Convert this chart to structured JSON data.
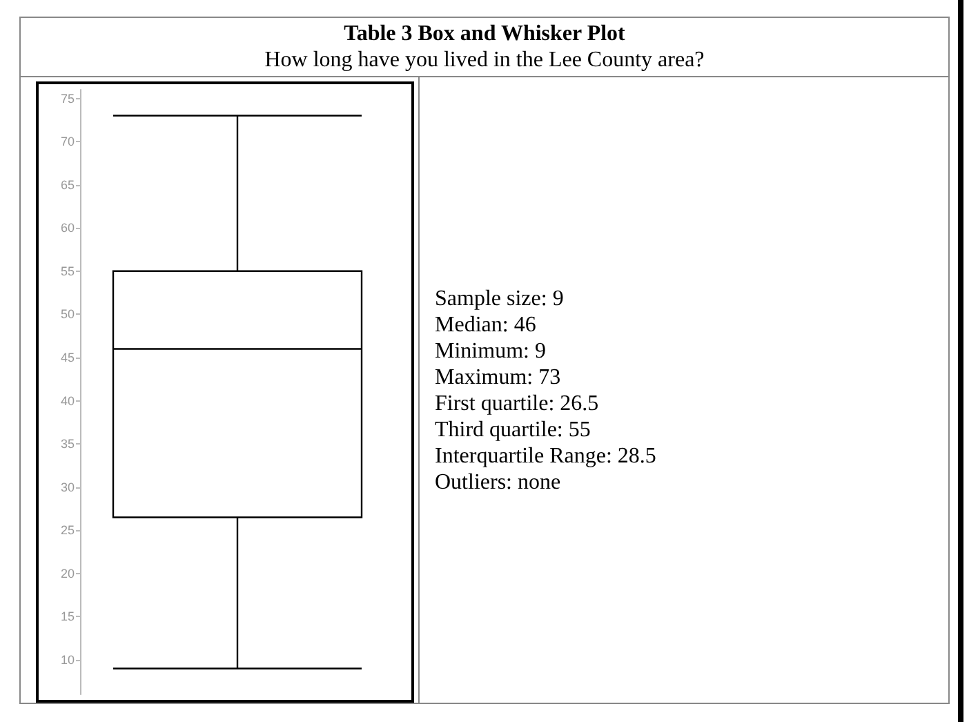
{
  "chart_data": {
    "type": "box",
    "title": "Table 3 Box and Whisker Plot",
    "subtitle": "How long have you lived in the Lee County area?",
    "categories": [
      null
    ],
    "boxes": [
      {
        "low": 9,
        "q1": 26.5,
        "median": 46,
        "q3": 55,
        "high": 73
      }
    ],
    "ylim": [
      6,
      76
    ],
    "yticks": [
      10,
      15,
      20,
      25,
      30,
      35,
      40,
      45,
      50,
      55,
      60,
      65,
      70,
      75
    ],
    "tick_labels": "y",
    "annotations": [
      "Sample size: 9",
      "Median: 46",
      "Minimum: 9",
      "Maximum: 73",
      "First quartile: 26.5",
      "Third quartile: 55",
      "Interquartile Range: 28.5",
      "Outliers: none"
    ]
  }
}
